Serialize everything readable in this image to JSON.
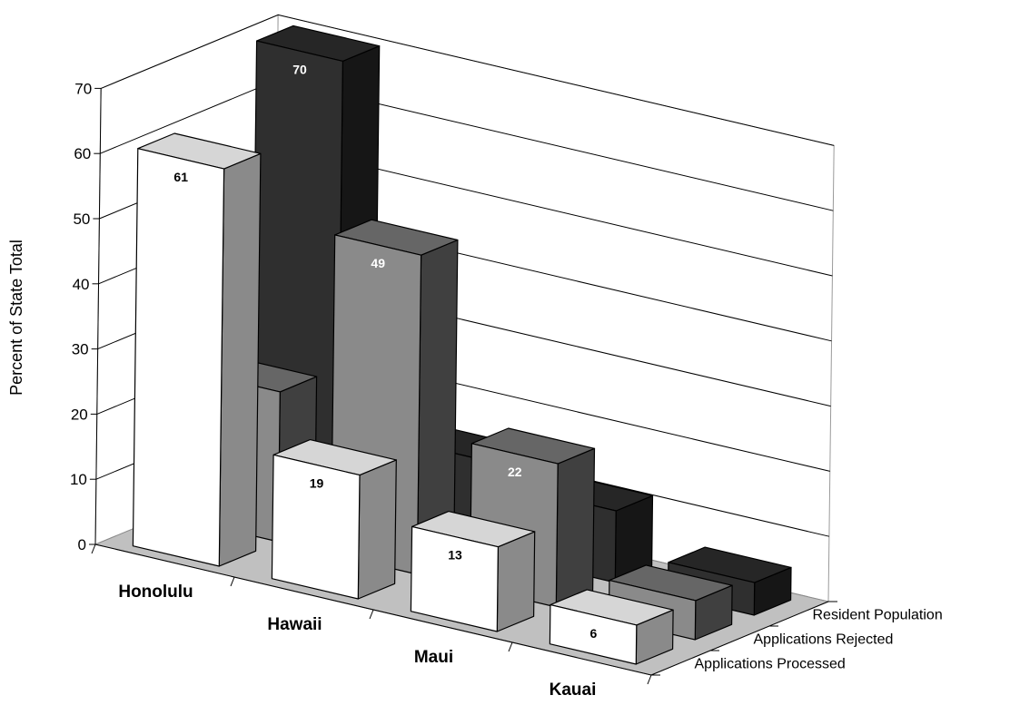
{
  "chart_data": {
    "type": "bar",
    "subtype": "3d-column",
    "title": "",
    "ylabel": "Percent of State Total",
    "ylim": [
      0,
      70
    ],
    "yticks": [
      0,
      10,
      20,
      30,
      40,
      50,
      60,
      70
    ],
    "grid": true,
    "categories": [
      "Honolulu",
      "Hawaii",
      "Maui",
      "Kauai"
    ],
    "series": [
      {
        "name": "Applications Processed",
        "values": [
          61,
          19,
          13,
          6
        ],
        "colors": {
          "front": "#ffffff",
          "side": "#8a8a8a",
          "top": "#d6d6d6",
          "label": "#000000"
        }
      },
      {
        "name": "Applications Rejected",
        "values": [
          23,
          49,
          22,
          6
        ],
        "colors": {
          "front": "#8a8a8a",
          "side": "#404040",
          "top": "#666666",
          "label": "#ffffff"
        }
      },
      {
        "name": "Resident Population",
        "values": [
          70,
          14,
          11,
          5
        ],
        "colors": {
          "front": "#2f2f2f",
          "side": "#161616",
          "top": "#262626",
          "label": "#ffffff"
        }
      }
    ],
    "floor_color": "#c0c0c0"
  }
}
